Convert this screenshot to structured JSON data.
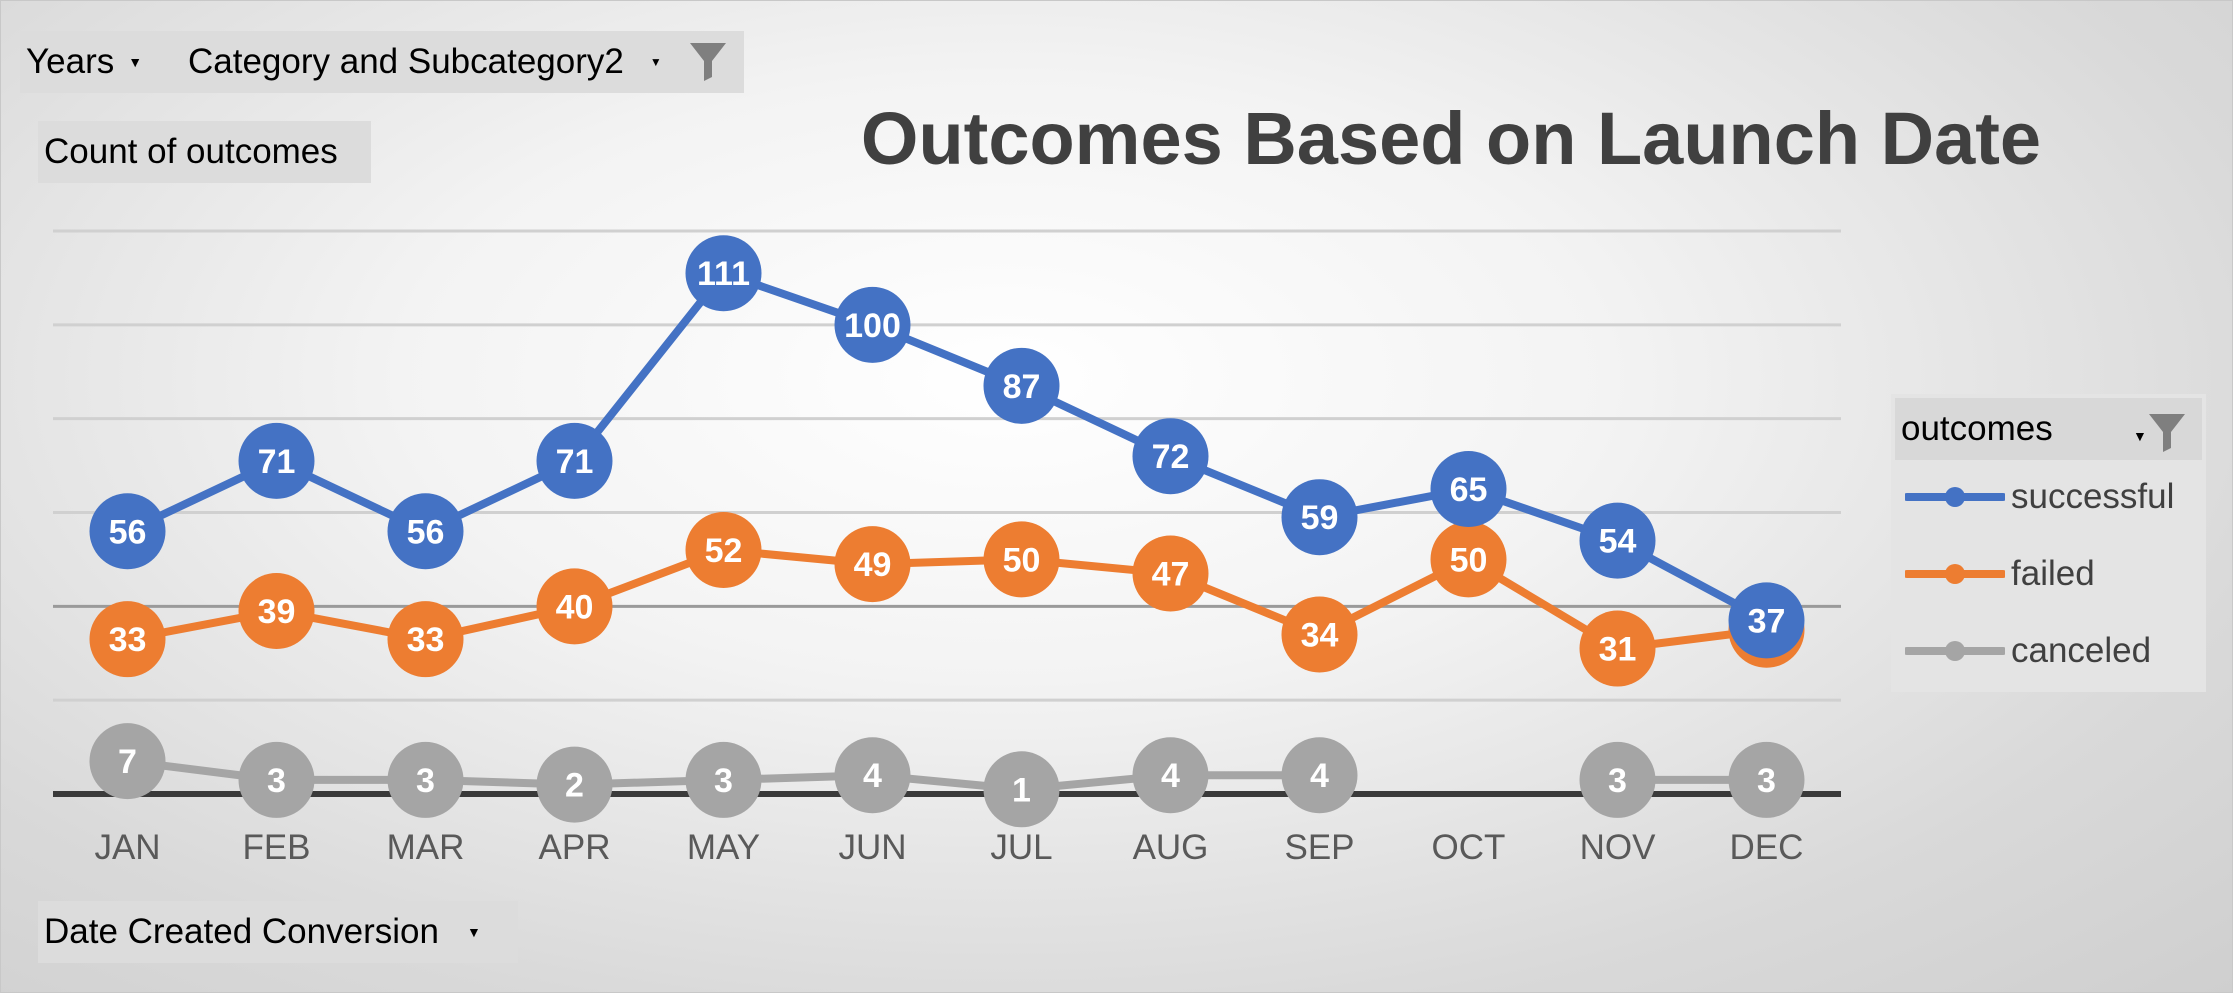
{
  "filters": {
    "years_label": "Years",
    "category_label": "Category and Subcategory2"
  },
  "value_field_label": "Count of outcomes",
  "axis_field_label": "Date Created Conversion",
  "legend": {
    "title": "outcomes"
  },
  "colors": {
    "successful": "#4472C4",
    "failed": "#ED7D31",
    "canceled": "#A5A5A5"
  },
  "chart_data": {
    "type": "line",
    "title": "Outcomes Based on Launch Date",
    "xlabel": "",
    "ylabel": "",
    "categories": [
      "JAN",
      "FEB",
      "MAR",
      "APR",
      "MAY",
      "JUN",
      "JUL",
      "AUG",
      "SEP",
      "OCT",
      "NOV",
      "DEC"
    ],
    "ylim": [
      0,
      120
    ],
    "grid": true,
    "legend_position": "right",
    "data_labels": true,
    "series": [
      {
        "name": "successful",
        "values": [
          56,
          71,
          56,
          71,
          111,
          100,
          87,
          72,
          59,
          65,
          54,
          37
        ]
      },
      {
        "name": "failed",
        "values": [
          33,
          39,
          33,
          40,
          52,
          49,
          50,
          47,
          34,
          50,
          31,
          35
        ]
      },
      {
        "name": "canceled",
        "values": [
          7,
          3,
          3,
          2,
          3,
          4,
          1,
          4,
          4,
          null,
          3,
          3
        ]
      }
    ]
  }
}
